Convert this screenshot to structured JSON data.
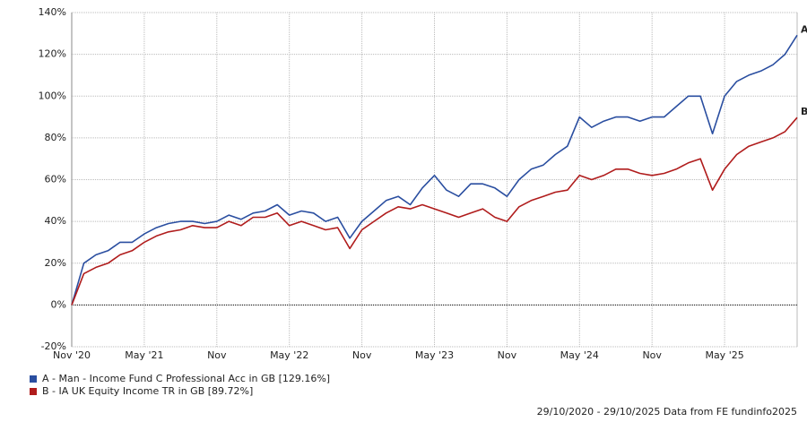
{
  "chart_data": {
    "type": "line",
    "x": [
      "2020-11",
      "2020-12",
      "2021-01",
      "2021-02",
      "2021-03",
      "2021-04",
      "2021-05",
      "2021-06",
      "2021-07",
      "2021-08",
      "2021-09",
      "2021-10",
      "2021-11",
      "2021-12",
      "2022-01",
      "2022-02",
      "2022-03",
      "2022-04",
      "2022-05",
      "2022-06",
      "2022-07",
      "2022-08",
      "2022-09",
      "2022-10",
      "2022-11",
      "2022-12",
      "2023-01",
      "2023-02",
      "2023-03",
      "2023-04",
      "2023-05",
      "2023-06",
      "2023-07",
      "2023-08",
      "2023-09",
      "2023-10",
      "2023-11",
      "2023-12",
      "2024-01",
      "2024-02",
      "2024-03",
      "2024-04",
      "2024-05",
      "2024-06",
      "2024-07",
      "2024-08",
      "2024-09",
      "2024-10",
      "2024-11",
      "2024-12",
      "2025-01",
      "2025-02",
      "2025-03",
      "2025-04",
      "2025-05",
      "2025-06",
      "2025-07",
      "2025-08",
      "2025-09",
      "2025-10",
      "2025-11"
    ],
    "xlim": [
      "2020-11",
      "2025-11"
    ],
    "xticks": [
      {
        "value": "2020-11",
        "label": "Nov '20"
      },
      {
        "value": "2021-05",
        "label": "May '21"
      },
      {
        "value": "2021-11",
        "label": "Nov"
      },
      {
        "value": "2022-05",
        "label": "May '22"
      },
      {
        "value": "2022-11",
        "label": "Nov"
      },
      {
        "value": "2023-05",
        "label": "May '23"
      },
      {
        "value": "2023-11",
        "label": "Nov"
      },
      {
        "value": "2024-05",
        "label": "May '24"
      },
      {
        "value": "2024-11",
        "label": "Nov"
      },
      {
        "value": "2025-05",
        "label": "May '25"
      }
    ],
    "ylim": [
      -20,
      140
    ],
    "yticks": [
      {
        "value": -20,
        "label": "-20%"
      },
      {
        "value": 0,
        "label": "0%"
      },
      {
        "value": 20,
        "label": "20%"
      },
      {
        "value": 40,
        "label": "40%"
      },
      {
        "value": 60,
        "label": "60%"
      },
      {
        "value": 80,
        "label": "80%"
      },
      {
        "value": 100,
        "label": "100%"
      },
      {
        "value": 120,
        "label": "120%"
      },
      {
        "value": 140,
        "label": "140%"
      }
    ],
    "grid": true,
    "series": [
      {
        "name": "A - Man - Income Fund C Professional Acc in GB [129.16%]",
        "label": "A",
        "color": "#2a4ea0",
        "values": [
          0,
          20,
          24,
          26,
          30,
          30,
          34,
          37,
          39,
          40,
          40,
          39,
          40,
          43,
          41,
          44,
          45,
          48,
          43,
          45,
          44,
          40,
          42,
          32,
          40,
          45,
          50,
          52,
          48,
          56,
          62,
          55,
          52,
          58,
          58,
          56,
          52,
          60,
          65,
          67,
          72,
          76,
          90,
          85,
          88,
          90,
          90,
          88,
          90,
          90,
          95,
          100,
          100,
          82,
          100,
          107,
          110,
          112,
          115,
          120,
          129.16
        ]
      },
      {
        "name": "B - IA UK Equity Income TR in GB [89.72%]",
        "label": "B",
        "color": "#b01c1c",
        "values": [
          0,
          15,
          18,
          20,
          24,
          26,
          30,
          33,
          35,
          36,
          38,
          37,
          37,
          40,
          38,
          42,
          42,
          44,
          38,
          40,
          38,
          36,
          37,
          27,
          36,
          40,
          44,
          47,
          46,
          48,
          46,
          44,
          42,
          44,
          46,
          42,
          40,
          47,
          50,
          52,
          54,
          55,
          62,
          60,
          62,
          65,
          65,
          63,
          62,
          63,
          65,
          68,
          70,
          55,
          65,
          72,
          76,
          78,
          80,
          83,
          89.72
        ]
      }
    ],
    "footer": "29/10/2020 - 29/10/2025 Data from FE fundinfo2025"
  }
}
